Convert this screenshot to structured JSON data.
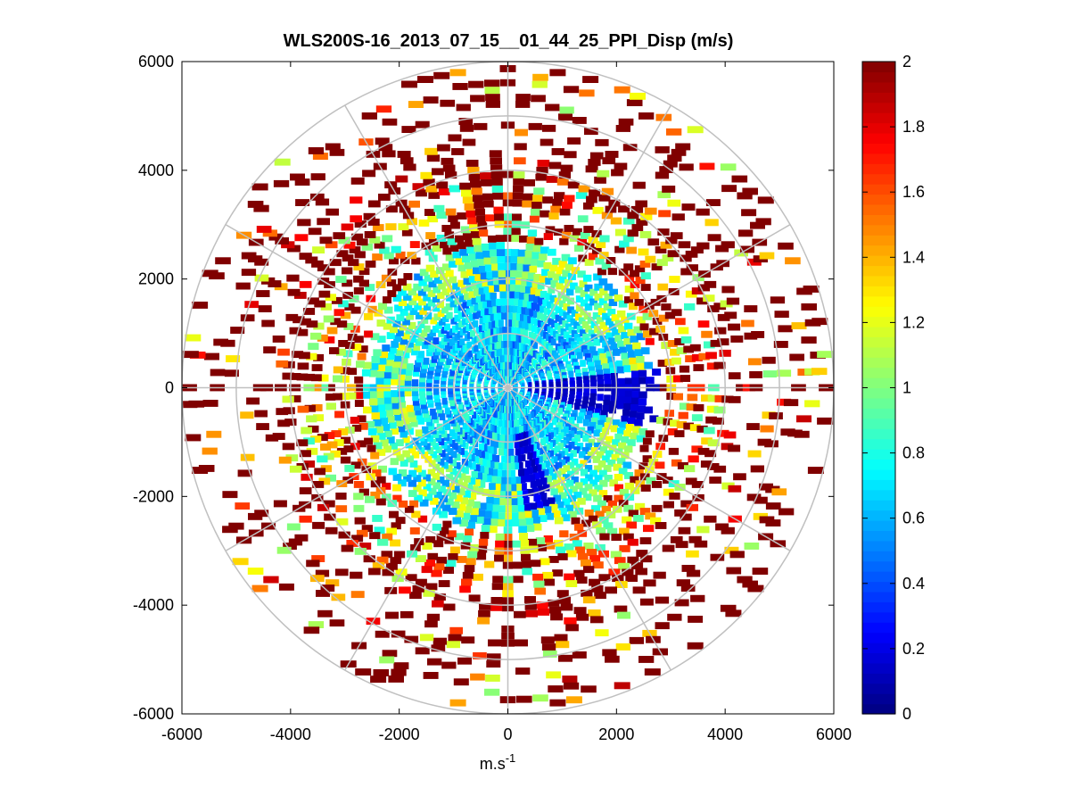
{
  "chart_data": {
    "type": "heatmap",
    "subtype": "polar-ppi",
    "title": "WLS200S-16_2013_07_15__01_44_25_PPI_Disp (m/s)",
    "xlabel_base": "m.s",
    "xlabel_exp": "-1",
    "xlim": [
      -6000,
      6000
    ],
    "ylim": [
      -6000,
      6000
    ],
    "xticks": [
      -6000,
      -4000,
      -2000,
      0,
      2000,
      4000,
      6000
    ],
    "yticks": [
      -6000,
      -4000,
      -2000,
      0,
      2000,
      4000,
      6000
    ],
    "polar_rings": [
      1000,
      2000,
      3000,
      4000,
      5000,
      6000
    ],
    "polar_spokes_deg": [
      0,
      30,
      60,
      90,
      120,
      150,
      180,
      210,
      240,
      270,
      300,
      330
    ],
    "max_range": 6000,
    "colorbar": {
      "min": 0,
      "max": 2,
      "ticks": [
        0,
        0.2,
        0.4,
        0.6,
        0.8,
        1,
        1.2,
        1.4,
        1.6,
        1.8,
        2
      ],
      "colormap": "jet",
      "steps": 64
    },
    "data_description": "Dispersion (m/s) per range gate; dense low values (0.4-0.8) near center, high values (>=2) at outer range, low-value (~0.1) streaks toward east and south-southeast.",
    "colors": {
      "grid": "#c0c0c0",
      "axis": "#000000"
    }
  }
}
